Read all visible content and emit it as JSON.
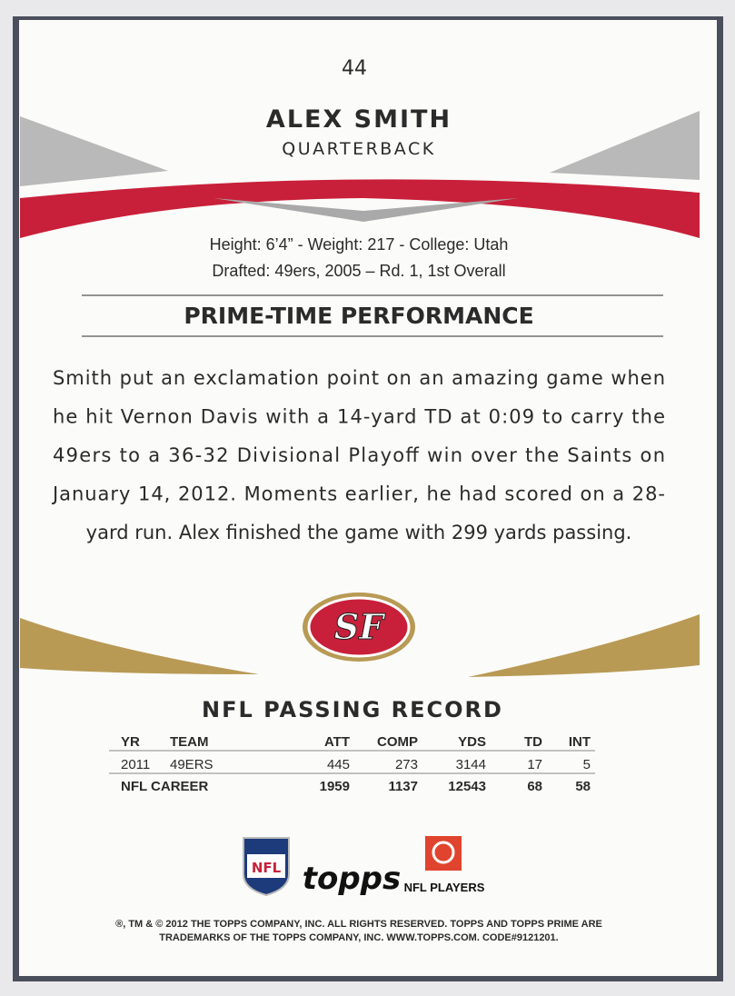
{
  "card": {
    "number": "44",
    "player_name": "ALEX SMITH",
    "position": "QUARTERBACK",
    "bio_lines": [
      "Height: 6’4” - Weight: 217 - College: Utah",
      "Drafted: 49ers, 2005 – Rd. 1, 1st Overall"
    ],
    "section_title": "PRIME-TIME PERFORMANCE",
    "body_lines": [
      "Smith put an exclamation point on an amazing game when",
      "he hit Vernon Davis with a 14-yard TD at 0:09 to carry the",
      "49ers to a 36-32 Divisional Playoff win over the Saints on",
      "January 14, 2012. Moments earlier, he had scored on a 28-",
      "yard run. Alex finished the game with 299 yards passing."
    ],
    "team_logo": "SF",
    "table": {
      "title": "NFL PASSING RECORD",
      "header": [
        "YR",
        "TEAM",
        "ATT",
        "COMP",
        "YDS",
        "TD",
        "INT"
      ],
      "rows": [
        [
          2011,
          "49ERS",
          445,
          273,
          3144,
          17,
          5
        ],
        [
          "NFL CAREER",
          1959,
          1137,
          12543,
          68,
          58
        ]
      ]
    },
    "logos": {
      "nfl": "NFL",
      "topps": "topps",
      "nfl_players": "NFL PLAYERS"
    },
    "footer_lines": [
      "®, TM & © 2012 THE TOPPS COMPANY, INC. ALL RIGHTS RESERVED. TOPPS AND TOPPS PRIME ARE",
      "TRADEMARKS OF THE TOPPS COMPANY, INC. WWW.TOPPS.COM. CODE#9121201."
    ]
  }
}
